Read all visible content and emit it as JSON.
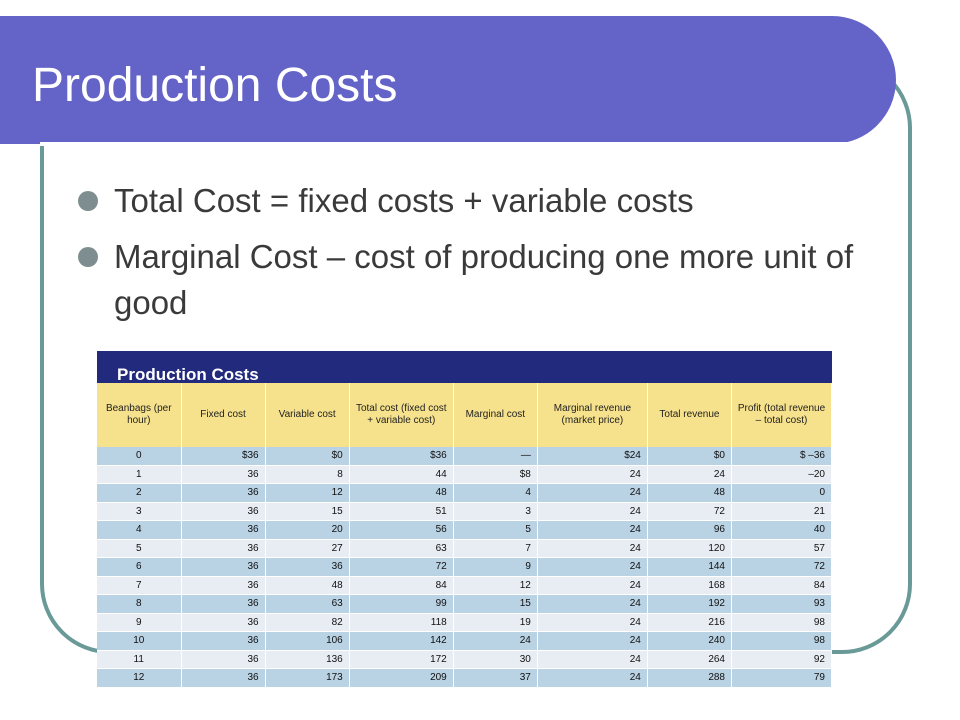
{
  "slide": {
    "title": "Production Costs",
    "bullets": [
      "Total Cost = fixed costs + variable costs",
      "Marginal Cost – cost of producing one more unit of good"
    ]
  },
  "table": {
    "caption": "Production Costs",
    "headers": [
      "Beanbags (per hour)",
      "Fixed cost",
      "Variable cost",
      "Total cost (fixed cost + variable cost)",
      "Marginal cost",
      "Marginal revenue (market price)",
      "Total revenue",
      "Profit (total revenue – total cost)"
    ],
    "rows": [
      [
        "0",
        "$36",
        "$0",
        "$36",
        "—",
        "$24",
        "$0",
        "$ –36"
      ],
      [
        "1",
        "36",
        "8",
        "44",
        "$8",
        "24",
        "24",
        "–20"
      ],
      [
        "2",
        "36",
        "12",
        "48",
        "4",
        "24",
        "48",
        "0"
      ],
      [
        "3",
        "36",
        "15",
        "51",
        "3",
        "24",
        "72",
        "21"
      ],
      [
        "4",
        "36",
        "20",
        "56",
        "5",
        "24",
        "96",
        "40"
      ],
      [
        "5",
        "36",
        "27",
        "63",
        "7",
        "24",
        "120",
        "57"
      ],
      [
        "6",
        "36",
        "36",
        "72",
        "9",
        "24",
        "144",
        "72"
      ],
      [
        "7",
        "36",
        "48",
        "84",
        "12",
        "24",
        "168",
        "84"
      ],
      [
        "8",
        "36",
        "63",
        "99",
        "15",
        "24",
        "192",
        "93"
      ],
      [
        "9",
        "36",
        "82",
        "118",
        "19",
        "24",
        "216",
        "98"
      ],
      [
        "10",
        "36",
        "106",
        "142",
        "24",
        "24",
        "240",
        "98"
      ],
      [
        "11",
        "36",
        "136",
        "172",
        "30",
        "24",
        "264",
        "92"
      ],
      [
        "12",
        "36",
        "173",
        "209",
        "37",
        "24",
        "288",
        "79"
      ]
    ]
  },
  "colors": {
    "title_bar": "#6464c8",
    "frame": "#6a9a98",
    "table_caption": "#222a7e",
    "header_fill": "#f6e28c",
    "row_blue": "#b9d2e4",
    "row_light": "#e8edf3"
  }
}
